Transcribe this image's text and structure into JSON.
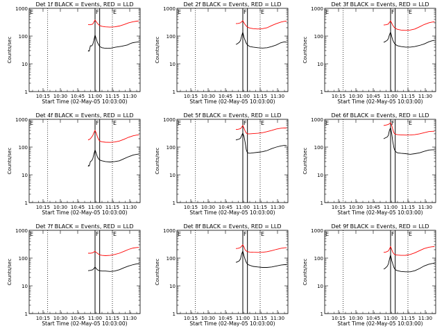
{
  "figure": {
    "background": "#ffffff",
    "axis_color": "#000000",
    "events_color": "#000000",
    "lld_color": "#ff0000"
  },
  "common": {
    "xlabel": "Start Time (02-May-05 10:03:00)",
    "ylabel": "Counts/sec",
    "x_tick_labels": [
      "10:15",
      "10:30",
      "10:45",
      "11:00",
      "11:15",
      "11:30"
    ],
    "y_tick_labels": [
      "1",
      "10",
      "100",
      "1000"
    ],
    "corner_label_left": "E",
    "flare_label": "F",
    "end_label": "E"
  },
  "chart_data": [
    {
      "type": "line",
      "title": "Det 1f BLACK = Events, RED = LLD",
      "x_unit": "minutes since 10:03:00",
      "xlim": [
        0,
        96
      ],
      "ylim": [
        1,
        1000
      ],
      "y_scale": "log",
      "grid": false,
      "vertical_dotted_lines_x": [
        16,
        72
      ],
      "vertical_solid_lines_x": [
        57,
        61
      ],
      "series": [
        {
          "name": "Events",
          "color": "#000000",
          "x": [
            51,
            51.5,
            52,
            53,
            54,
            55,
            56,
            57,
            58,
            59,
            60,
            61,
            62,
            63,
            65,
            68,
            71,
            75,
            80,
            85,
            88,
            90,
            92,
            95
          ],
          "values": [
            28,
            30,
            29,
            45,
            44,
            50,
            70,
            110,
            80,
            60,
            50,
            42,
            40,
            38,
            37,
            36,
            37,
            40,
            43,
            48,
            55,
            58,
            60,
            62
          ]
        },
        {
          "name": "LLD",
          "color": "#ff0000",
          "x": [
            51,
            53,
            55,
            56,
            57,
            58,
            59,
            60,
            61,
            63,
            66,
            70,
            74,
            78,
            82,
            86,
            90,
            93,
            95
          ],
          "values": [
            260,
            255,
            270,
            320,
            380,
            330,
            290,
            260,
            240,
            225,
            215,
            210,
            215,
            230,
            260,
            300,
            330,
            345,
            350
          ]
        }
      ]
    },
    {
      "type": "line",
      "title": "Det 2f BLACK = Events, RED = LLD",
      "x_unit": "minutes since 10:03:00",
      "xlim": [
        0,
        96
      ],
      "ylim": [
        1,
        1000
      ],
      "y_scale": "log",
      "grid": false,
      "vertical_dotted_lines_x": [
        16,
        72
      ],
      "vertical_solid_lines_x": [
        57,
        61
      ],
      "series": [
        {
          "name": "Events",
          "color": "#000000",
          "x": [
            51,
            52,
            54,
            55,
            56,
            57,
            58,
            59,
            60,
            61,
            63,
            66,
            70,
            74,
            78,
            82,
            86,
            90,
            93,
            95
          ],
          "values": [
            50,
            52,
            60,
            70,
            100,
            140,
            90,
            70,
            55,
            48,
            42,
            40,
            38,
            37,
            38,
            42,
            48,
            58,
            62,
            60
          ]
        },
        {
          "name": "LLD",
          "color": "#ff0000",
          "x": [
            51,
            53,
            55,
            56,
            57,
            58,
            59,
            60,
            61,
            63,
            66,
            70,
            74,
            78,
            82,
            86,
            90,
            93,
            95
          ],
          "values": [
            280,
            285,
            300,
            330,
            360,
            300,
            260,
            230,
            210,
            195,
            185,
            180,
            185,
            200,
            240,
            280,
            320,
            340,
            345
          ]
        }
      ]
    },
    {
      "type": "line",
      "title": "Det 3f BLACK = Events, RED = LLD",
      "x_unit": "minutes since 10:03:00",
      "xlim": [
        0,
        96
      ],
      "ylim": [
        1,
        1000
      ],
      "y_scale": "log",
      "grid": false,
      "vertical_dotted_lines_x": [
        16,
        72
      ],
      "vertical_solid_lines_x": [
        57,
        61
      ],
      "series": [
        {
          "name": "Events",
          "color": "#000000",
          "x": [
            51,
            52,
            54,
            55,
            56,
            57,
            58,
            59,
            60,
            61,
            63,
            66,
            70,
            74,
            78,
            82,
            86,
            90,
            93,
            95
          ],
          "values": [
            60,
            62,
            70,
            80,
            110,
            140,
            95,
            70,
            58,
            50,
            45,
            42,
            40,
            40,
            42,
            46,
            52,
            62,
            68,
            70
          ]
        },
        {
          "name": "LLD",
          "color": "#ff0000",
          "x": [
            51,
            53,
            55,
            56,
            57,
            58,
            59,
            60,
            61,
            63,
            66,
            70,
            74,
            78,
            82,
            86,
            90,
            93,
            95
          ],
          "values": [
            250,
            255,
            270,
            310,
            350,
            290,
            240,
            210,
            190,
            175,
            165,
            160,
            165,
            180,
            215,
            260,
            300,
            320,
            325
          ]
        }
      ]
    },
    {
      "type": "line",
      "title": "Det 4f BLACK = Events, RED = LLD",
      "x_unit": "minutes since 10:03:00",
      "xlim": [
        0,
        96
      ],
      "ylim": [
        1,
        1000
      ],
      "y_scale": "log",
      "grid": false,
      "vertical_dotted_lines_x": [
        16,
        72
      ],
      "vertical_solid_lines_x": [
        57,
        61
      ],
      "series": [
        {
          "name": "Events",
          "color": "#000000",
          "x": [
            51,
            51.5,
            52,
            53,
            54,
            55,
            56,
            57,
            58,
            59,
            60,
            61,
            63,
            66,
            70,
            74,
            78,
            82,
            86,
            90,
            93,
            95
          ],
          "values": [
            20,
            22,
            21,
            30,
            32,
            38,
            55,
            80,
            60,
            45,
            38,
            34,
            32,
            30,
            29,
            30,
            32,
            38,
            45,
            52,
            55,
            56
          ]
        },
        {
          "name": "LLD",
          "color": "#ff0000",
          "x": [
            51,
            53,
            55,
            56,
            57,
            58,
            59,
            60,
            61,
            63,
            66,
            70,
            74,
            78,
            82,
            86,
            90,
            93,
            95
          ],
          "values": [
            180,
            200,
            260,
            330,
            400,
            320,
            240,
            190,
            165,
            155,
            150,
            148,
            152,
            165,
            190,
            225,
            255,
            270,
            272
          ]
        }
      ]
    },
    {
      "type": "line",
      "title": "Det 5f BLACK = Events, RED = LLD",
      "x_unit": "minutes since 10:03:00",
      "xlim": [
        0,
        96
      ],
      "ylim": [
        1,
        1000
      ],
      "y_scale": "log",
      "grid": false,
      "vertical_dotted_lines_x": [
        16,
        72
      ],
      "vertical_solid_lines_x": [
        57,
        61
      ],
      "series": [
        {
          "name": "Events",
          "color": "#000000",
          "x": [
            51,
            52,
            54,
            55,
            56,
            57,
            58,
            59,
            60,
            61,
            63,
            66,
            70,
            74,
            78,
            82,
            86,
            90,
            93,
            95
          ],
          "values": [
            180,
            185,
            195,
            210,
            260,
            320,
            240,
            150,
            80,
            62,
            60,
            62,
            65,
            68,
            75,
            88,
            100,
            110,
            115,
            112
          ]
        },
        {
          "name": "LLD",
          "color": "#ff0000",
          "x": [
            51,
            53,
            55,
            56,
            57,
            58,
            59,
            60,
            61,
            63,
            66,
            70,
            74,
            78,
            82,
            86,
            90,
            93,
            95
          ],
          "values": [
            430,
            440,
            460,
            520,
            600,
            480,
            380,
            320,
            300,
            300,
            305,
            315,
            330,
            360,
            400,
            450,
            480,
            490,
            485
          ]
        }
      ]
    },
    {
      "type": "line",
      "title": "Det 6f BLACK = Events, RED = LLD",
      "x_unit": "minutes since 10:03:00",
      "xlim": [
        0,
        96
      ],
      "ylim": [
        1,
        1000
      ],
      "y_scale": "log",
      "grid": false,
      "vertical_dotted_lines_x": [
        16,
        72
      ],
      "vertical_solid_lines_x": [
        57,
        61
      ],
      "series": [
        {
          "name": "Events",
          "color": "#000000",
          "x": [
            51,
            52,
            54,
            55,
            56,
            57,
            58,
            59,
            60,
            61,
            63,
            66,
            70,
            74,
            78,
            82,
            86,
            90,
            93,
            95
          ],
          "values": [
            200,
            210,
            230,
            260,
            400,
            500,
            300,
            150,
            90,
            70,
            62,
            60,
            58,
            55,
            58,
            62,
            70,
            78,
            80,
            80
          ]
        },
        {
          "name": "LLD",
          "color": "#ff0000",
          "x": [
            51,
            53,
            55,
            56,
            57,
            58,
            59,
            60,
            61,
            63,
            66,
            70,
            74,
            78,
            82,
            86,
            90,
            93,
            95
          ],
          "values": [
            600,
            620,
            650,
            700,
            750,
            600,
            420,
            320,
            290,
            280,
            275,
            270,
            272,
            280,
            300,
            330,
            360,
            370,
            372
          ]
        }
      ]
    },
    {
      "type": "line",
      "title": "Det 7f BLACK = Events, RED = LLD",
      "x_unit": "minutes since 10:03:00",
      "xlim": [
        0,
        96
      ],
      "ylim": [
        1,
        1000
      ],
      "y_scale": "log",
      "grid": false,
      "vertical_dotted_lines_x": [
        16,
        72
      ],
      "vertical_solid_lines_x": [
        57,
        61
      ],
      "series": [
        {
          "name": "Events",
          "color": "#000000",
          "x": [
            51,
            53,
            55,
            56,
            57,
            58,
            59,
            60,
            61,
            63,
            66,
            70,
            74,
            78,
            82,
            86,
            90,
            93,
            95
          ],
          "values": [
            35,
            36,
            38,
            42,
            48,
            42,
            38,
            36,
            35,
            34,
            34,
            33,
            34,
            38,
            45,
            52,
            58,
            62,
            63
          ]
        },
        {
          "name": "LLD",
          "color": "#ff0000",
          "x": [
            51,
            53,
            55,
            56,
            57,
            58,
            59,
            60,
            61,
            63,
            66,
            70,
            74,
            78,
            82,
            86,
            90,
            93,
            95
          ],
          "values": [
            150,
            150,
            155,
            165,
            175,
            160,
            150,
            140,
            130,
            125,
            122,
            125,
            135,
            150,
            175,
            205,
            230,
            240,
            242
          ]
        }
      ]
    },
    {
      "type": "line",
      "title": "Det 8f BLACK = Events, RED = LLD",
      "x_unit": "minutes since 10:03:00",
      "xlim": [
        0,
        96
      ],
      "ylim": [
        1,
        1000
      ],
      "y_scale": "log",
      "grid": false,
      "vertical_dotted_lines_x": [
        16,
        72
      ],
      "vertical_solid_lines_x": [
        57,
        61
      ],
      "series": [
        {
          "name": "Events",
          "color": "#000000",
          "x": [
            51,
            52,
            54,
            55,
            56,
            57,
            58,
            59,
            60,
            61,
            63,
            66,
            70,
            74,
            78,
            82,
            86,
            90,
            93,
            95
          ],
          "values": [
            70,
            72,
            80,
            95,
            140,
            180,
            120,
            90,
            70,
            60,
            55,
            50,
            48,
            46,
            46,
            48,
            52,
            56,
            58,
            58
          ]
        },
        {
          "name": "LLD",
          "color": "#ff0000",
          "x": [
            51,
            53,
            55,
            56,
            57,
            58,
            59,
            60,
            61,
            63,
            66,
            70,
            74,
            78,
            82,
            86,
            90,
            93,
            95
          ],
          "values": [
            220,
            225,
            240,
            270,
            300,
            250,
            200,
            180,
            170,
            165,
            162,
            160,
            162,
            170,
            185,
            205,
            225,
            235,
            238
          ]
        }
      ]
    },
    {
      "type": "line",
      "title": "Det 9f BLACK = Events, RED = LLD",
      "x_unit": "minutes since 10:03:00",
      "xlim": [
        0,
        96
      ],
      "ylim": [
        1,
        1000
      ],
      "y_scale": "log",
      "grid": false,
      "vertical_dotted_lines_x": [
        16,
        72
      ],
      "vertical_solid_lines_x": [
        57,
        61
      ],
      "series": [
        {
          "name": "Events",
          "color": "#000000",
          "x": [
            51,
            52,
            54,
            55,
            56,
            57,
            58,
            59,
            60,
            61,
            63,
            66,
            70,
            74,
            78,
            82,
            86,
            90,
            93,
            95
          ],
          "values": [
            40,
            42,
            50,
            60,
            90,
            130,
            80,
            60,
            45,
            38,
            35,
            33,
            32,
            32,
            35,
            42,
            52,
            60,
            64,
            65
          ]
        },
        {
          "name": "LLD",
          "color": "#ff0000",
          "x": [
            51,
            53,
            55,
            56,
            57,
            58,
            59,
            60,
            61,
            63,
            66,
            70,
            74,
            78,
            82,
            86,
            90,
            93,
            95
          ],
          "values": [
            160,
            165,
            180,
            210,
            260,
            200,
            160,
            140,
            132,
            128,
            125,
            126,
            135,
            155,
            185,
            220,
            245,
            255,
            258
          ]
        }
      ]
    }
  ]
}
